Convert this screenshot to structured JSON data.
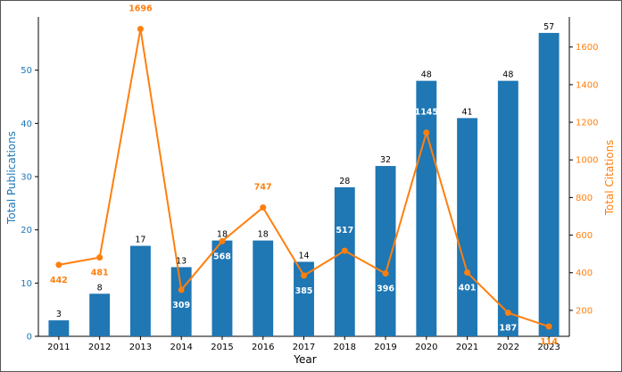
{
  "chart_data": {
    "type": "bar",
    "xlabel": "Year",
    "ylabel_left": "Total Publications",
    "ylabel_right": "Total Citations",
    "categories": [
      "2011",
      "2012",
      "2013",
      "2014",
      "2015",
      "2016",
      "2017",
      "2018",
      "2019",
      "2020",
      "2021",
      "2022",
      "2023"
    ],
    "series": [
      {
        "kind": "bar",
        "axis": "left",
        "values": [
          3,
          8,
          17,
          13,
          18,
          18,
          14,
          28,
          32,
          48,
          41,
          48,
          57
        ],
        "color": "#1f77b4"
      },
      {
        "kind": "line",
        "axis": "right",
        "values": [
          442,
          481,
          1696,
          309,
          568,
          747,
          385,
          517,
          396,
          1145,
          401,
          187,
          114
        ],
        "color": "#ff7f0e"
      }
    ],
    "ylim_left": [
      0,
      60
    ],
    "yticks_left": [
      0,
      10,
      20,
      30,
      40,
      50
    ],
    "ylim_right": [
      62,
      1760
    ],
    "yticks_right": [
      200,
      400,
      600,
      800,
      1000,
      1200,
      1400,
      1600
    ],
    "grid": false,
    "colors": {
      "bar": "#1f77b4",
      "line": "#ff7f0e",
      "left_axis_text": "#1f77b4",
      "right_axis_text": "#ff7f0e",
      "bar_label": "#000000",
      "cite_label_inside_bar": "#ffffff",
      "cite_label_outside": "#ff7f0e"
    }
  }
}
